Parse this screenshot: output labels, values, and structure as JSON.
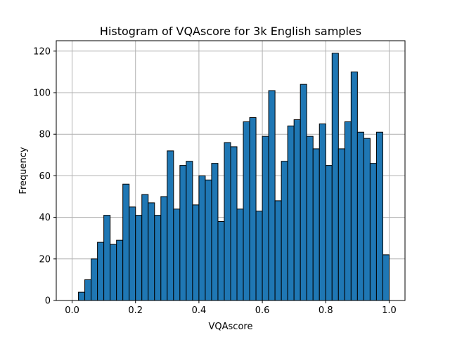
{
  "chart_data": {
    "type": "bar",
    "title": "Histogram of VQAscore for 3k English samples",
    "xlabel": "VQAscore",
    "ylabel": "Frequency",
    "xlim": [
      -0.05,
      1.05
    ],
    "ylim": [
      0,
      125
    ],
    "grid": true,
    "bar_color": "#1f77b4",
    "edge_color": "#000000",
    "x_ticks": [
      "0.0",
      "0.2",
      "0.4",
      "0.6",
      "0.8",
      "1.0"
    ],
    "y_ticks": [
      "0",
      "20",
      "40",
      "60",
      "80",
      "100",
      "120"
    ],
    "bin_start": 0.02,
    "bin_width": 0.02,
    "values": [
      4,
      10,
      20,
      28,
      41,
      27,
      29,
      56,
      45,
      41,
      51,
      47,
      41,
      50,
      72,
      44,
      65,
      67,
      46,
      60,
      58,
      66,
      38,
      76,
      74,
      44,
      86,
      88,
      43,
      79,
      101,
      48,
      67,
      84,
      87,
      104,
      79,
      73,
      85,
      65,
      119,
      73,
      86,
      110,
      81,
      78,
      66,
      81,
      22
    ]
  }
}
